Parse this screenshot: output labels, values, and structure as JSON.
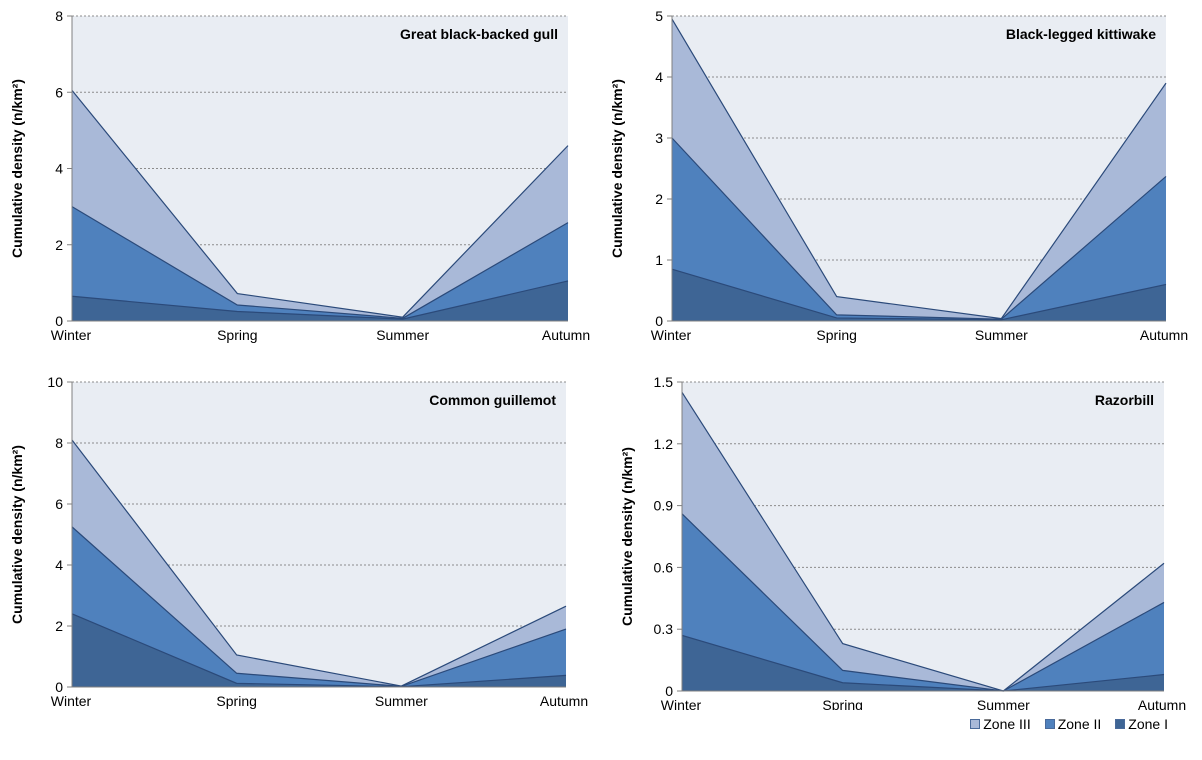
{
  "colors": {
    "plot_bg": "#e9edf3",
    "zone_III": "#a9b9d8",
    "zone_II": "#4f81bd",
    "zone_I": "#3e6595",
    "edge": "#2b4a7a",
    "grid": "#8c8c8c"
  },
  "legend": [
    {
      "label": "Zone III",
      "color_key": "zone_III"
    },
    {
      "label": "Zone II",
      "color_key": "zone_II"
    },
    {
      "label": "Zone I",
      "color_key": "zone_I"
    }
  ],
  "chart_data": [
    {
      "type": "area",
      "stacked": true,
      "title": "Great black-backed gull",
      "ylabel": "Cumulative density (n/km²)",
      "categories": [
        "Winter",
        "Spring",
        "Summer",
        "Autumn"
      ],
      "ylim": [
        0,
        8
      ],
      "yticks": [
        0,
        2,
        4,
        6,
        8
      ],
      "ytick_labels": [
        "0",
        "2",
        "4",
        "6",
        "8"
      ],
      "grid": true,
      "series": [
        {
          "name": "Zone I",
          "values": [
            0.65,
            0.25,
            0.05,
            1.05
          ]
        },
        {
          "name": "Zone II",
          "values": [
            2.35,
            0.17,
            0.02,
            1.53
          ]
        },
        {
          "name": "Zone III",
          "values": [
            3.05,
            0.3,
            0.03,
            2.02
          ]
        }
      ]
    },
    {
      "type": "area",
      "stacked": true,
      "title": "Black-legged kittiwake",
      "ylabel": "Cumulative density (n/km²)",
      "categories": [
        "Winter",
        "Spring",
        "Summer",
        "Autumn"
      ],
      "ylim": [
        0,
        5
      ],
      "yticks": [
        0,
        1,
        2,
        3,
        4,
        5
      ],
      "ytick_labels": [
        "0",
        "1",
        "2",
        "3",
        "4",
        "5"
      ],
      "grid": true,
      "series": [
        {
          "name": "Zone I",
          "values": [
            0.85,
            0.05,
            0.02,
            0.6
          ]
        },
        {
          "name": "Zone II",
          "values": [
            2.15,
            0.05,
            0.01,
            1.77
          ]
        },
        {
          "name": "Zone III",
          "values": [
            1.95,
            0.3,
            0.01,
            1.53
          ]
        }
      ]
    },
    {
      "type": "area",
      "stacked": true,
      "title": "Common guillemot",
      "ylabel": "Cumulative density (n/km²)",
      "categories": [
        "Winter",
        "Spring",
        "Summer",
        "Autumn"
      ],
      "ylim": [
        0,
        10
      ],
      "yticks": [
        0,
        2,
        4,
        6,
        8,
        10
      ],
      "ytick_labels": [
        "0",
        "2",
        "4",
        "6",
        "8",
        "10"
      ],
      "grid": true,
      "series": [
        {
          "name": "Zone I",
          "values": [
            2.4,
            0.12,
            0.01,
            0.38
          ]
        },
        {
          "name": "Zone II",
          "values": [
            2.85,
            0.33,
            0.01,
            1.52
          ]
        },
        {
          "name": "Zone III",
          "values": [
            2.85,
            0.6,
            0.01,
            0.75
          ]
        }
      ]
    },
    {
      "type": "area",
      "stacked": true,
      "title": "Razorbill",
      "ylabel": "Cumulative density (n/km²)",
      "categories": [
        "Winter",
        "Spring",
        "Summer",
        "Autumn"
      ],
      "ylim": [
        0,
        1.5
      ],
      "yticks": [
        0,
        0.3,
        0.6,
        0.9,
        1.2,
        1.5
      ],
      "ytick_labels": [
        "0",
        "0.3",
        "0.6",
        "0.9",
        "1.2",
        "1.5"
      ],
      "grid": true,
      "series": [
        {
          "name": "Zone I",
          "values": [
            0.27,
            0.04,
            0.0,
            0.08
          ]
        },
        {
          "name": "Zone II",
          "values": [
            0.59,
            0.06,
            0.0,
            0.35
          ]
        },
        {
          "name": "Zone III",
          "values": [
            0.59,
            0.13,
            0.0,
            0.19
          ]
        }
      ]
    }
  ]
}
